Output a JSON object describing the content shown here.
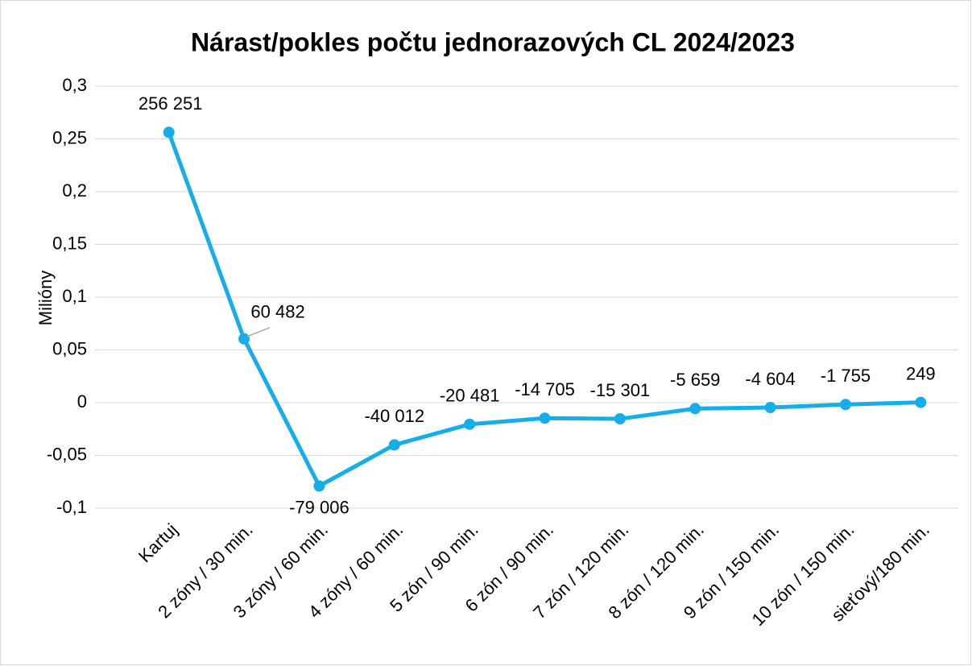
{
  "chart_data": {
    "type": "line",
    "title": "Nárast/pokles počtu jednorazových CL 2024/2023",
    "y_label": "Milióny",
    "categories": [
      "Kartuj",
      "2 zóny / 30 min.",
      "3 zóny / 60 min.",
      "4 zóny / 60 min.",
      "5 zón / 90 min.",
      "6 zón / 90 min.",
      "7 zón / 120 min.",
      "8 zón / 120 min.",
      "9 zón / 150 min.",
      "10 zón / 150 min.",
      "sieťový/180 min."
    ],
    "series": [
      {
        "name": "Nárast/pokles",
        "color": "#16aee9",
        "values": [
          0.256251,
          0.060482,
          -0.079006,
          -0.040012,
          -0.020481,
          -0.014705,
          -0.015301,
          -0.005659,
          -0.004604,
          -0.001755,
          0.000249
        ],
        "value_labels": [
          "256 251",
          "60 482",
          "-79 006",
          "-40 012",
          "-20 481",
          "-14 705",
          "-15 301",
          "-5 659",
          "-4 604",
          "-1 755",
          "249"
        ]
      }
    ],
    "ylim": [
      -0.1,
      0.3
    ],
    "yticks": [
      {
        "value": -0.1,
        "label": "-0,1"
      },
      {
        "value": -0.05,
        "label": "-0,05"
      },
      {
        "value": 0,
        "label": "0"
      },
      {
        "value": 0.05,
        "label": "0,05"
      },
      {
        "value": 0.1,
        "label": "0,1"
      },
      {
        "value": 0.15,
        "label": "0,15"
      },
      {
        "value": 0.2,
        "label": "0,2"
      },
      {
        "value": 0.25,
        "label": "0,25"
      },
      {
        "value": 0.3,
        "label": "0,3"
      }
    ],
    "grid": true
  }
}
